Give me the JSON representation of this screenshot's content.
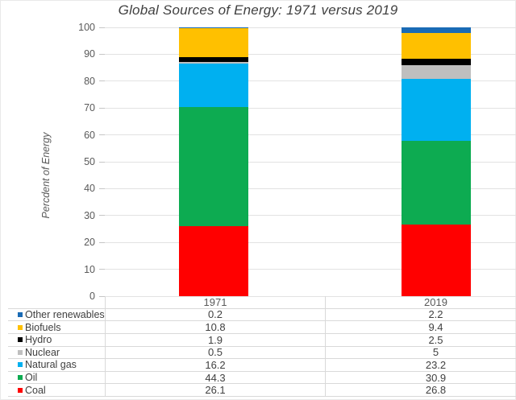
{
  "chart_data": {
    "type": "bar",
    "stacked": true,
    "title": "Global Sources of Energy: 1971 versus 2019",
    "ylabel": "Percdent of Energy",
    "xlabel": "",
    "ylim": [
      0,
      100
    ],
    "yticks": [
      0,
      10,
      20,
      30,
      40,
      50,
      60,
      70,
      80,
      90,
      100
    ],
    "grid": true,
    "legend_position": "data-table-below",
    "categories": [
      "1971",
      "2019"
    ],
    "series": [
      {
        "name": "Other renewables",
        "color": "#1a6bb5",
        "values": [
          0.2,
          2.2
        ]
      },
      {
        "name": "Biofuels",
        "color": "#ffc000",
        "values": [
          10.8,
          9.4
        ]
      },
      {
        "name": "Hydro",
        "color": "#000000",
        "values": [
          1.9,
          2.5
        ]
      },
      {
        "name": "Nuclear",
        "color": "#bfbfbf",
        "values": [
          0.5,
          5
        ]
      },
      {
        "name": "Natural gas",
        "color": "#00b0f0",
        "values": [
          16.2,
          23.2
        ]
      },
      {
        "name": "Oil",
        "color": "#0dab51",
        "values": [
          44.3,
          30.9
        ]
      },
      {
        "name": "Coal",
        "color": "#ff0000",
        "values": [
          26.1,
          26.8
        ]
      }
    ]
  }
}
